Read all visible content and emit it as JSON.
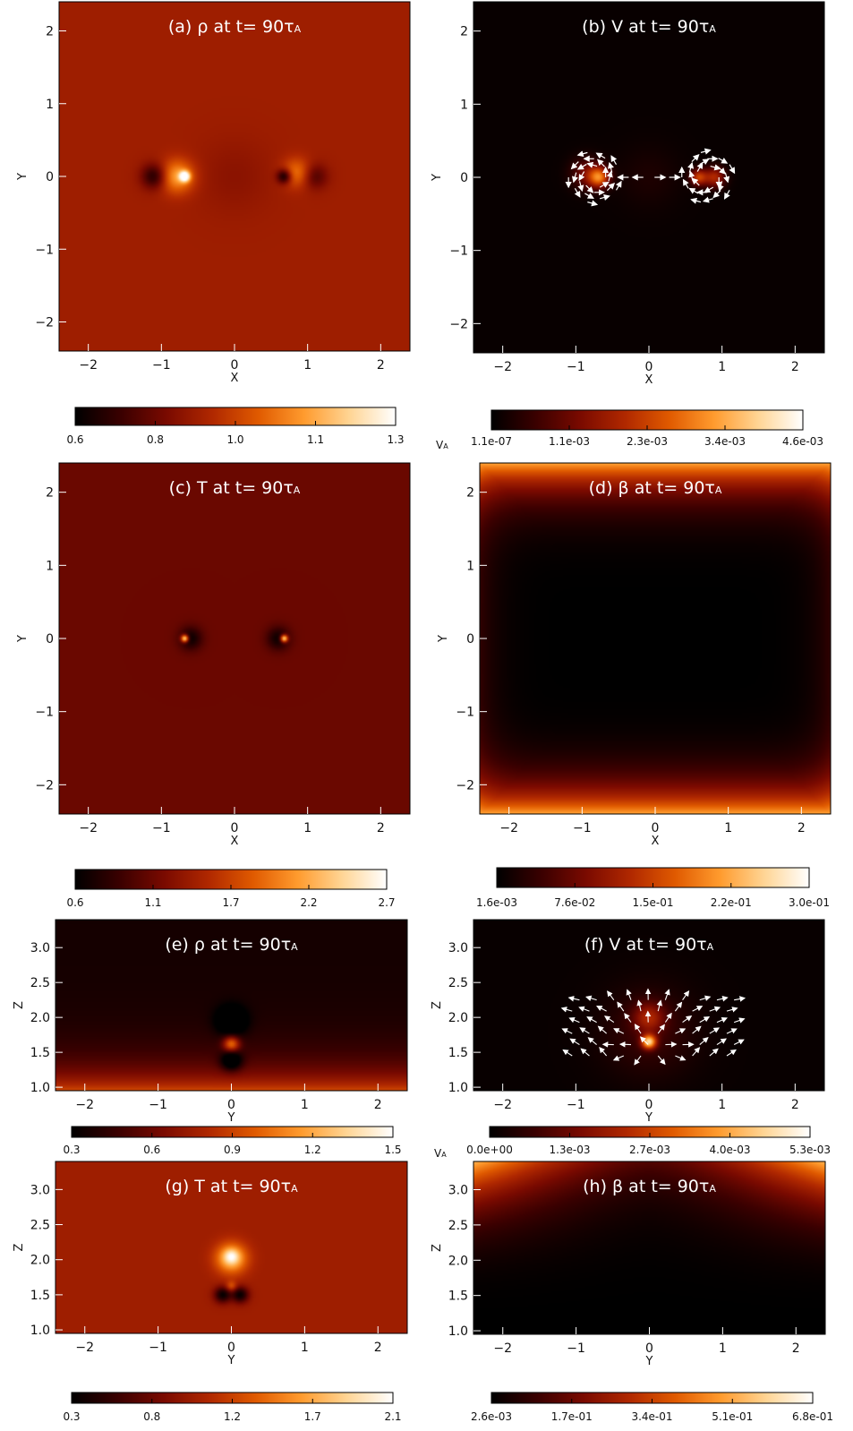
{
  "colors": {
    "colormap": [
      "#000000",
      "#3a0000",
      "#7a0a00",
      "#b02800",
      "#e05a00",
      "#ff9b2e",
      "#ffd595",
      "#ffffff"
    ],
    "arrows": "#ffffff",
    "axes": "#000000"
  },
  "chart_data": [
    {
      "id": "a",
      "type": "heatmap",
      "title": "(a) ρ at t= 90τ",
      "xlabel": "X",
      "ylabel": "Y",
      "xlim": [
        -2.4,
        2.4
      ],
      "ylim": [
        -2.4,
        2.4
      ],
      "xticks": [
        -2,
        -1,
        0,
        1,
        2
      ],
      "yticks": [
        -2,
        -1,
        0,
        1,
        2
      ],
      "colorbar": {
        "ticks": [
          "0.6",
          "0.8",
          "1.0",
          "1.1",
          "1.3"
        ],
        "unit": ""
      },
      "background_level": 0.38,
      "features": [
        {
          "x": -0.68,
          "y": 0.0,
          "sigma": 0.05,
          "level": 0.62
        },
        {
          "x": -0.78,
          "y": 0.0,
          "sigma": 0.16,
          "level": 0.35
        },
        {
          "x": -1.1,
          "y": 0.0,
          "sigma": 0.12,
          "level": -0.3
        },
        {
          "x": 0.68,
          "y": 0.0,
          "sigma": 0.07,
          "level": -0.38
        },
        {
          "x": 0.85,
          "y": 0.05,
          "sigma": 0.14,
          "level": 0.25
        },
        {
          "x": 1.1,
          "y": 0.0,
          "sigma": 0.12,
          "level": -0.2
        },
        {
          "x": 0.0,
          "y": 0.0,
          "sigma": 0.35,
          "level": -0.05
        }
      ]
    },
    {
      "id": "b",
      "type": "heatmap",
      "title": "(b) V at t= 90τ",
      "xlabel": "X",
      "ylabel": "Y",
      "xlim": [
        -2.4,
        2.4
      ],
      "ylim": [
        -2.4,
        2.4
      ],
      "xticks": [
        -2,
        -1,
        0,
        1,
        2
      ],
      "yticks": [
        -2,
        -1,
        0,
        1,
        2
      ],
      "colorbar": {
        "ticks": [
          "1.1e-07",
          "1.1e-03",
          "2.3e-03",
          "3.4e-03",
          "4.6e-03"
        ],
        "unit": "V"
      },
      "background_level": 0.02,
      "features": [
        {
          "x": -0.68,
          "y": 0.0,
          "sigma": 0.1,
          "level": 0.55
        },
        {
          "x": -0.85,
          "y": 0.05,
          "sigma": 0.15,
          "level": 0.25
        },
        {
          "x": 0.68,
          "y": 0.0,
          "sigma": 0.08,
          "level": 0.45
        },
        {
          "x": 0.9,
          "y": 0.0,
          "sigma": 0.1,
          "level": 0.4
        },
        {
          "x": 0.0,
          "y": 0.0,
          "sigma": 0.3,
          "level": 0.05
        }
      ],
      "arrows": {
        "centers": [
          [
            -0.75,
            0.0
          ],
          [
            0.8,
            0.0
          ]
        ],
        "spread": 0.35,
        "count": 24
      }
    },
    {
      "id": "c",
      "type": "heatmap",
      "title": "(c) T at t= 90τ",
      "xlabel": "X",
      "ylabel": "Y",
      "xlim": [
        -2.4,
        2.4
      ],
      "ylim": [
        -2.4,
        2.4
      ],
      "xticks": [
        -2,
        -1,
        0,
        1,
        2
      ],
      "yticks": [
        -2,
        -1,
        0,
        1,
        2
      ],
      "colorbar": {
        "ticks": [
          "0.6",
          "1.1",
          "1.7",
          "2.2",
          "2.7"
        ],
        "unit": ""
      },
      "background_level": 0.25,
      "features": [
        {
          "x": -0.68,
          "y": 0.0,
          "sigma": 0.035,
          "level": 0.75
        },
        {
          "x": -0.6,
          "y": 0.0,
          "sigma": 0.11,
          "level": -0.22
        },
        {
          "x": 0.68,
          "y": 0.0,
          "sigma": 0.035,
          "level": 0.75
        },
        {
          "x": 0.6,
          "y": 0.0,
          "sigma": 0.11,
          "level": -0.22
        }
      ]
    },
    {
      "id": "d",
      "type": "heatmap",
      "title": "(d) β at t= 90τ",
      "xlabel": "X",
      "ylabel": "Y",
      "xlim": [
        -2.4,
        2.4
      ],
      "ylim": [
        -2.4,
        2.4
      ],
      "xticks": [
        -2,
        -1,
        0,
        1,
        2
      ],
      "yticks": [
        -2,
        -1,
        0,
        1,
        2
      ],
      "colorbar": {
        "ticks": [
          "1.6e-03",
          "7.6e-02",
          "1.5e-01",
          "2.2e-01",
          "3.0e-01"
        ],
        "unit": ""
      },
      "background_level": 0.0,
      "field": "edge_y"
    },
    {
      "id": "e",
      "type": "heatmap",
      "title": "(e) ρ at t= 90τ",
      "xlabel": "Y",
      "ylabel": "Z",
      "xlim": [
        -2.4,
        2.4
      ],
      "ylim": [
        0.95,
        3.4
      ],
      "xticks": [
        -2,
        -1,
        0,
        1,
        2
      ],
      "yticks": [
        1.0,
        1.5,
        2.0,
        2.5,
        3.0
      ],
      "colorbar": {
        "ticks": [
          "0.3",
          "0.6",
          "0.9",
          "1.2",
          "1.5"
        ],
        "unit": ""
      },
      "field": "stratified",
      "features": [
        {
          "x": 0.0,
          "y": 1.62,
          "sigma": 0.08,
          "level": 0.5
        },
        {
          "x": 0.0,
          "y": 1.95,
          "sigma": 0.14,
          "level": -0.3
        },
        {
          "x": 0.0,
          "y": 1.38,
          "sigma": 0.1,
          "level": -0.35
        }
      ]
    },
    {
      "id": "f",
      "type": "heatmap",
      "title": "(f) V at t= 90τ",
      "xlabel": "Y",
      "ylabel": "Z",
      "xlim": [
        -2.4,
        2.4
      ],
      "ylim": [
        0.95,
        3.4
      ],
      "xticks": [
        -2,
        -1,
        0,
        1,
        2
      ],
      "yticks": [
        1.0,
        1.5,
        2.0,
        2.5,
        3.0
      ],
      "colorbar": {
        "ticks": [
          "0.0e+00",
          "1.3e-03",
          "2.7e-03",
          "4.0e-03",
          "5.3e-03"
        ],
        "unit": "V"
      },
      "background_level": 0.02,
      "features": [
        {
          "x": 0.0,
          "y": 1.65,
          "sigma": 0.07,
          "level": 0.75
        },
        {
          "x": 0.0,
          "y": 2.0,
          "sigma": 0.15,
          "level": 0.3
        },
        {
          "x": 0.0,
          "y": 1.8,
          "sigma": 0.45,
          "level": 0.12
        }
      ],
      "arrows": {
        "fan": [
          0.0,
          1.6
        ],
        "count": 60
      }
    },
    {
      "id": "g",
      "type": "heatmap",
      "title": "(g) T at t= 90τ",
      "xlabel": "Y",
      "ylabel": "Z",
      "xlim": [
        -2.4,
        2.4
      ],
      "ylim": [
        0.95,
        3.4
      ],
      "xticks": [
        -2,
        -1,
        0,
        1,
        2
      ],
      "yticks": [
        1.0,
        1.5,
        2.0,
        2.5,
        3.0
      ],
      "colorbar": {
        "ticks": [
          "0.3",
          "0.8",
          "1.2",
          "1.7",
          "2.1"
        ],
        "unit": ""
      },
      "background_level": 0.38,
      "features": [
        {
          "x": 0.0,
          "y": 2.02,
          "sigma": 0.15,
          "level": 0.45
        },
        {
          "x": 0.0,
          "y": 2.05,
          "sigma": 0.07,
          "level": 0.2
        },
        {
          "x": -0.12,
          "y": 1.5,
          "sigma": 0.08,
          "level": -0.36
        },
        {
          "x": 0.12,
          "y": 1.5,
          "sigma": 0.08,
          "level": -0.36
        },
        {
          "x": 0.0,
          "y": 1.62,
          "sigma": 0.05,
          "level": 0.2
        }
      ]
    },
    {
      "id": "h",
      "type": "heatmap",
      "title": "(h) β at t= 90τ",
      "xlabel": "Y",
      "ylabel": "Z",
      "xlim": [
        -2.4,
        2.4
      ],
      "ylim": [
        0.95,
        3.4
      ],
      "xticks": [
        -2,
        -1,
        0,
        1,
        2
      ],
      "yticks": [
        1.0,
        1.5,
        2.0,
        2.5,
        3.0
      ],
      "colorbar": {
        "ticks": [
          "2.6e-03",
          "1.7e-01",
          "3.4e-01",
          "5.1e-01",
          "6.8e-01"
        ],
        "unit": ""
      },
      "field": "corner_top"
    }
  ]
}
